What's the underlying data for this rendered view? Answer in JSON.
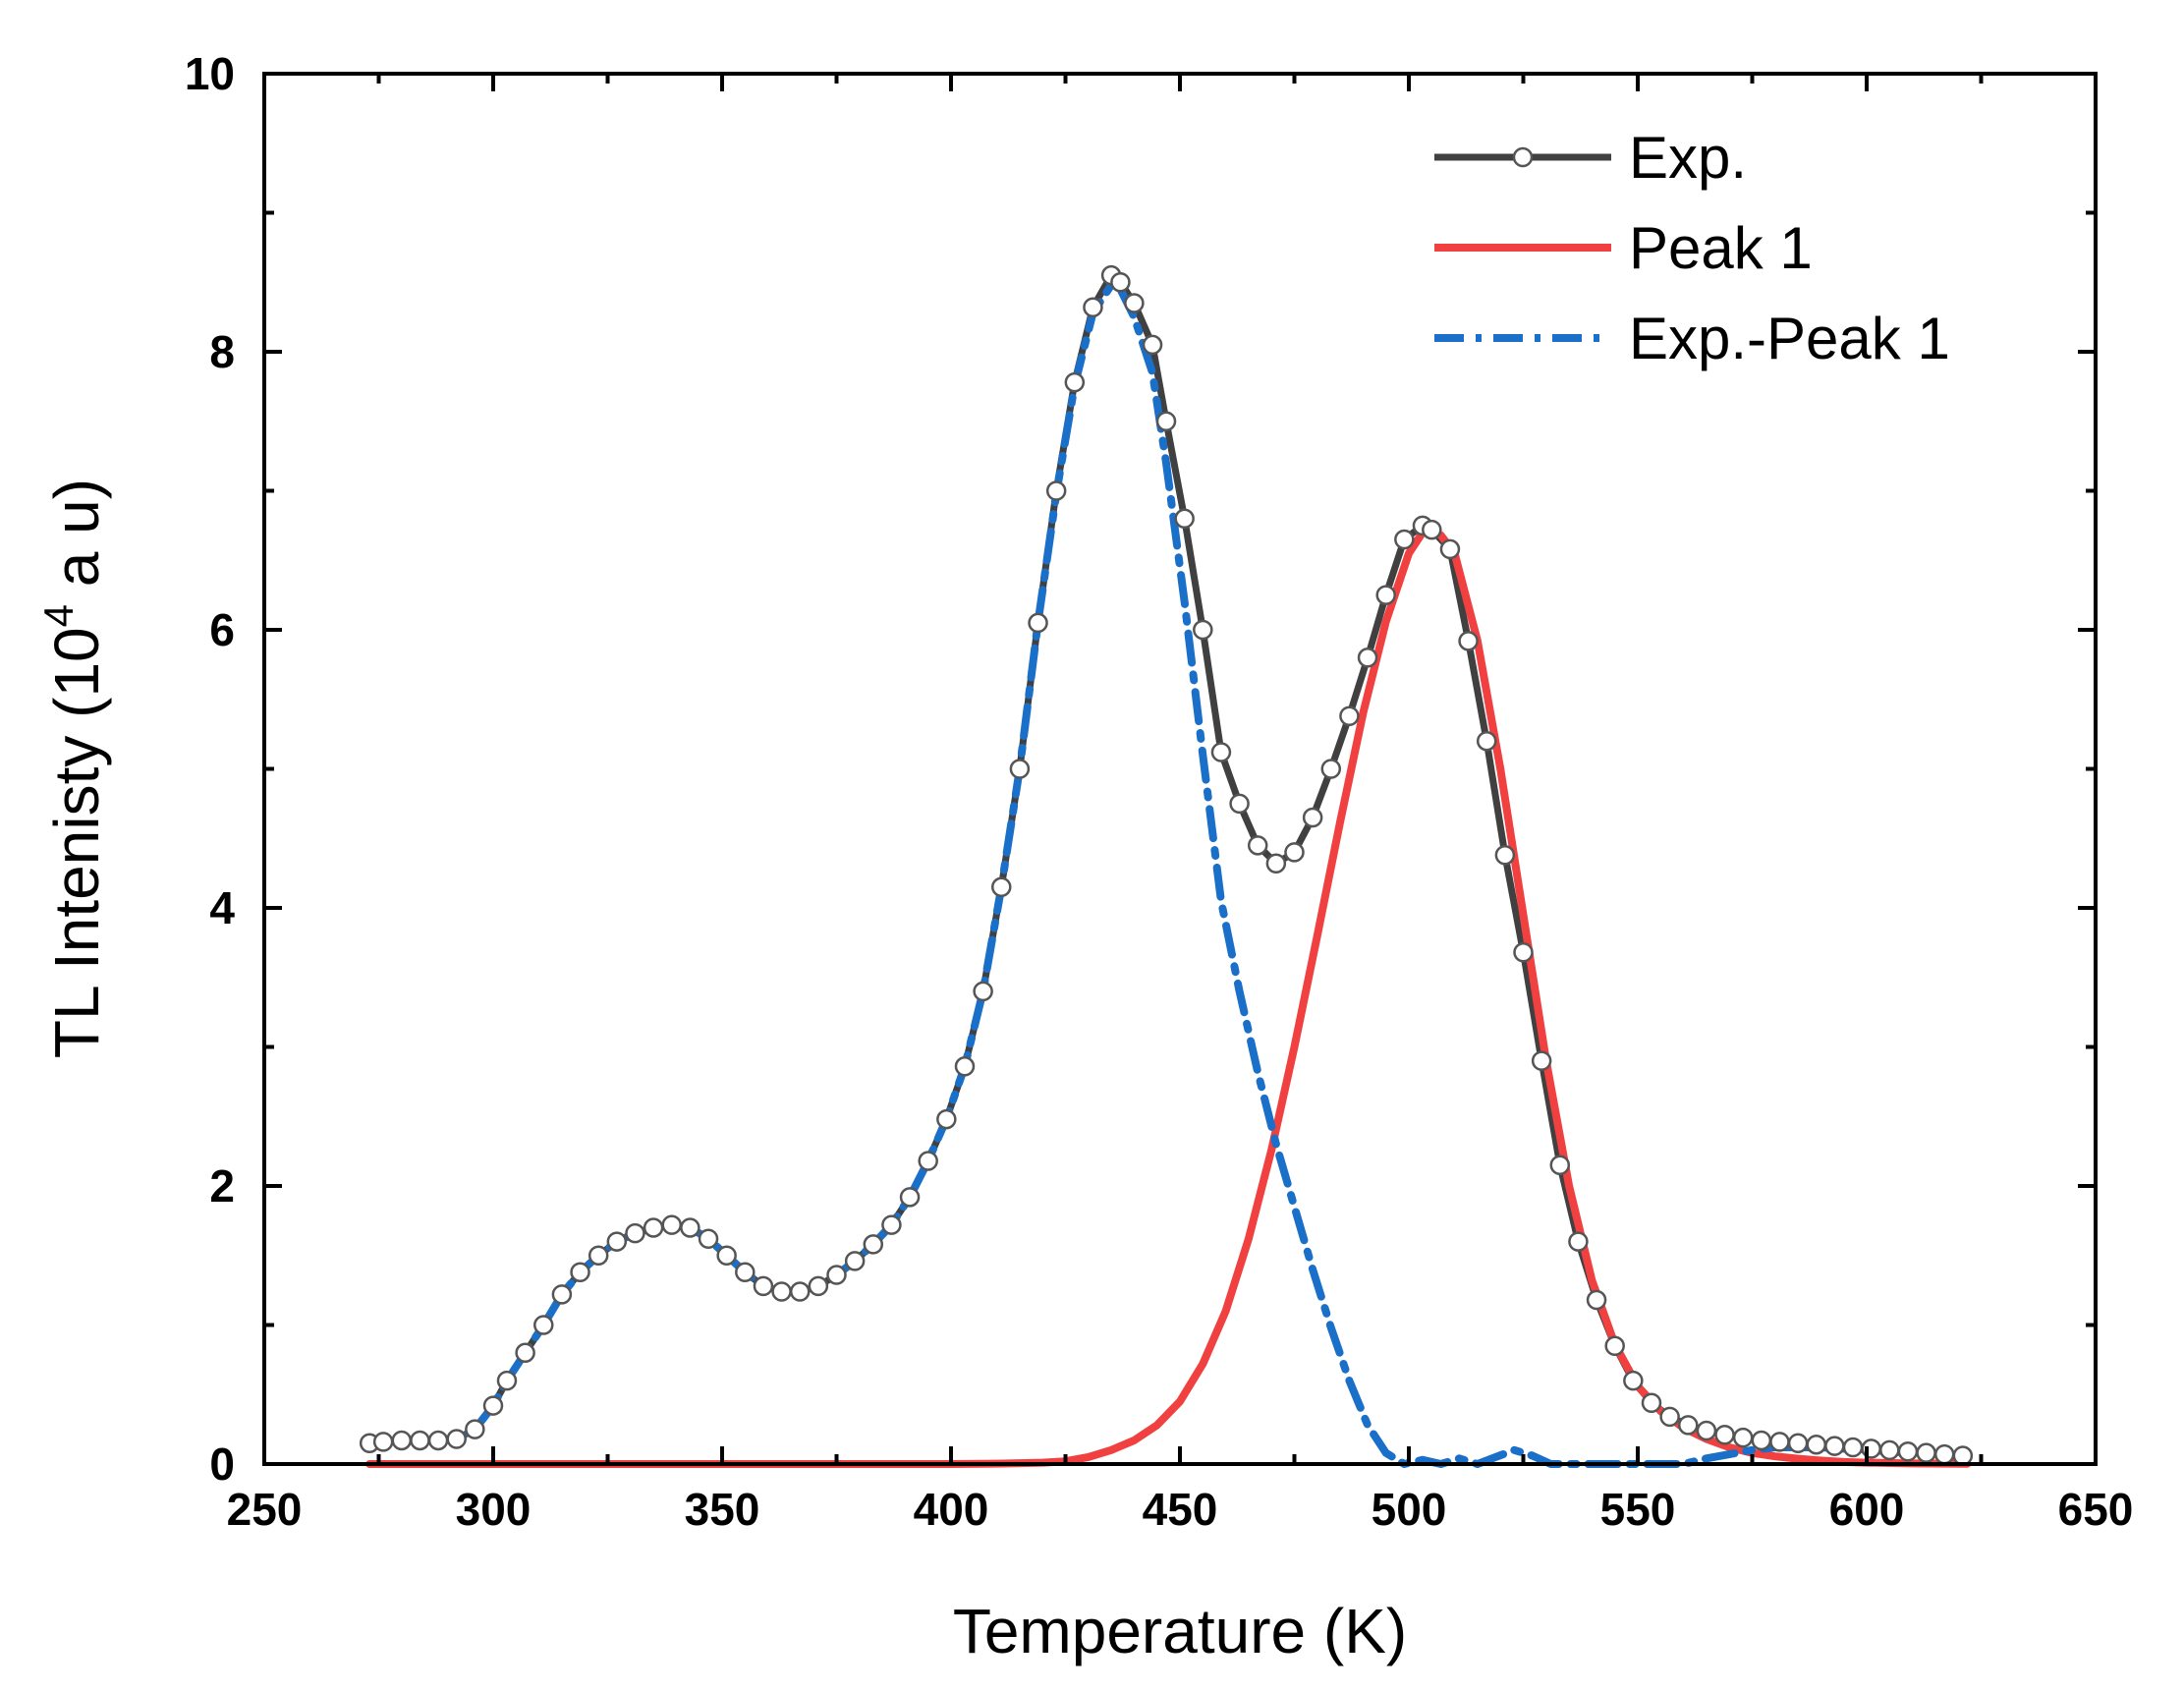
{
  "chart_data": {
    "type": "line",
    "title": "",
    "xlabel": "Temperature (K)",
    "ylabel": {
      "prefix": "TL Intenisty (10",
      "sup": "4",
      "suffix": " a u)"
    },
    "xlim": [
      250,
      650
    ],
    "ylim": [
      0,
      10
    ],
    "xticks": [
      250,
      300,
      350,
      400,
      450,
      500,
      550,
      600,
      650
    ],
    "yticks": [
      0,
      2,
      4,
      6,
      8,
      10
    ],
    "legend_position": "top-right",
    "series": [
      {
        "name": "Exp.",
        "color": "#404040",
        "style": "solid-with-open-circles",
        "x": [
          273,
          276,
          280,
          284,
          288,
          292,
          296,
          300,
          303,
          307,
          311,
          315,
          319,
          323,
          327,
          331,
          335,
          339,
          343,
          347,
          351,
          355,
          359,
          363,
          367,
          371,
          375,
          379,
          383,
          387,
          391,
          395,
          399,
          403,
          407,
          411,
          415,
          419,
          423,
          427,
          431,
          435,
          437,
          440,
          444,
          447,
          451,
          455,
          459,
          463,
          467,
          471,
          475,
          479,
          483,
          487,
          491,
          495,
          499,
          503,
          505,
          509,
          513,
          517,
          521,
          525,
          529,
          533,
          537,
          541,
          545,
          549,
          553,
          557,
          561,
          565,
          569,
          573,
          577,
          581,
          585,
          589,
          593,
          597,
          601,
          605,
          609,
          613,
          617,
          621
        ],
        "y": [
          0.15,
          0.16,
          0.17,
          0.17,
          0.17,
          0.18,
          0.25,
          0.42,
          0.6,
          0.8,
          1.0,
          1.22,
          1.38,
          1.5,
          1.6,
          1.66,
          1.7,
          1.72,
          1.7,
          1.62,
          1.5,
          1.38,
          1.28,
          1.24,
          1.24,
          1.28,
          1.36,
          1.46,
          1.58,
          1.72,
          1.92,
          2.18,
          2.48,
          2.86,
          3.4,
          4.15,
          5.0,
          6.05,
          7.0,
          7.78,
          8.32,
          8.55,
          8.5,
          8.35,
          8.05,
          7.5,
          6.8,
          6.0,
          5.12,
          4.75,
          4.45,
          4.32,
          4.4,
          4.65,
          5.0,
          5.38,
          5.8,
          6.25,
          6.65,
          6.75,
          6.72,
          6.58,
          5.92,
          5.2,
          4.38,
          3.68,
          2.9,
          2.15,
          1.6,
          1.18,
          0.85,
          0.6,
          0.44,
          0.34,
          0.28,
          0.24,
          0.21,
          0.19,
          0.17,
          0.16,
          0.15,
          0.14,
          0.13,
          0.12,
          0.11,
          0.1,
          0.09,
          0.08,
          0.07,
          0.06
        ]
      },
      {
        "name": "Peak 1",
        "color": "#f04040",
        "style": "solid",
        "x": [
          273,
          400,
          410,
          420,
          425,
          430,
          435,
          440,
          445,
          450,
          455,
          460,
          465,
          470,
          475,
          480,
          485,
          490,
          495,
          500,
          503,
          505,
          507,
          510,
          515,
          520,
          525,
          530,
          535,
          540,
          545,
          550,
          555,
          560,
          565,
          570,
          575,
          580,
          585,
          590,
          595,
          600,
          610,
          622
        ],
        "y": [
          0,
          0,
          0.003,
          0.01,
          0.02,
          0.05,
          0.1,
          0.17,
          0.28,
          0.45,
          0.72,
          1.1,
          1.62,
          2.26,
          3.0,
          3.8,
          4.62,
          5.4,
          6.06,
          6.55,
          6.7,
          6.72,
          6.68,
          6.55,
          5.92,
          5.0,
          3.95,
          2.9,
          2.0,
          1.32,
          0.86,
          0.56,
          0.38,
          0.26,
          0.18,
          0.12,
          0.08,
          0.055,
          0.038,
          0.025,
          0.015,
          0.01,
          0.004,
          0.002
        ]
      },
      {
        "name": "Exp.-Peak 1",
        "color": "#1a6fc8",
        "style": "dash-dot",
        "x": [
          273,
          280,
          288,
          292,
          296,
          300,
          303,
          307,
          311,
          315,
          319,
          323,
          327,
          331,
          335,
          339,
          343,
          347,
          351,
          355,
          359,
          363,
          367,
          371,
          375,
          379,
          383,
          387,
          391,
          395,
          399,
          403,
          407,
          411,
          415,
          419,
          423,
          427,
          431,
          435,
          437,
          440,
          444,
          447,
          451,
          455,
          459,
          463,
          467,
          471,
          475,
          479,
          483,
          487,
          491,
          495,
          499,
          503,
          507,
          511,
          515,
          519,
          523,
          527,
          531,
          560,
          565,
          570,
          575,
          580,
          585,
          590,
          595,
          600,
          605,
          610,
          615,
          622
        ],
        "y": [
          0.15,
          0.17,
          0.17,
          0.18,
          0.25,
          0.42,
          0.6,
          0.8,
          1.0,
          1.22,
          1.38,
          1.5,
          1.6,
          1.66,
          1.7,
          1.72,
          1.7,
          1.62,
          1.5,
          1.38,
          1.28,
          1.24,
          1.24,
          1.28,
          1.36,
          1.46,
          1.58,
          1.72,
          1.92,
          2.18,
          2.48,
          2.86,
          3.4,
          4.15,
          5.0,
          6.05,
          6.98,
          7.76,
          8.28,
          8.48,
          8.45,
          8.25,
          7.85,
          7.2,
          6.2,
          5.1,
          4.05,
          3.4,
          2.82,
          2.3,
          1.85,
          1.4,
          0.98,
          0.6,
          0.28,
          0.08,
          0.0,
          0.03,
          0.0,
          0.04,
          0.0,
          0.05,
          0.1,
          0.06,
          0.0,
          0.0,
          0.04,
          0.07,
          0.1,
          0.12,
          0.12,
          0.12,
          0.11,
          0.1,
          0.09,
          0.08,
          0.07,
          0.05
        ]
      }
    ]
  }
}
